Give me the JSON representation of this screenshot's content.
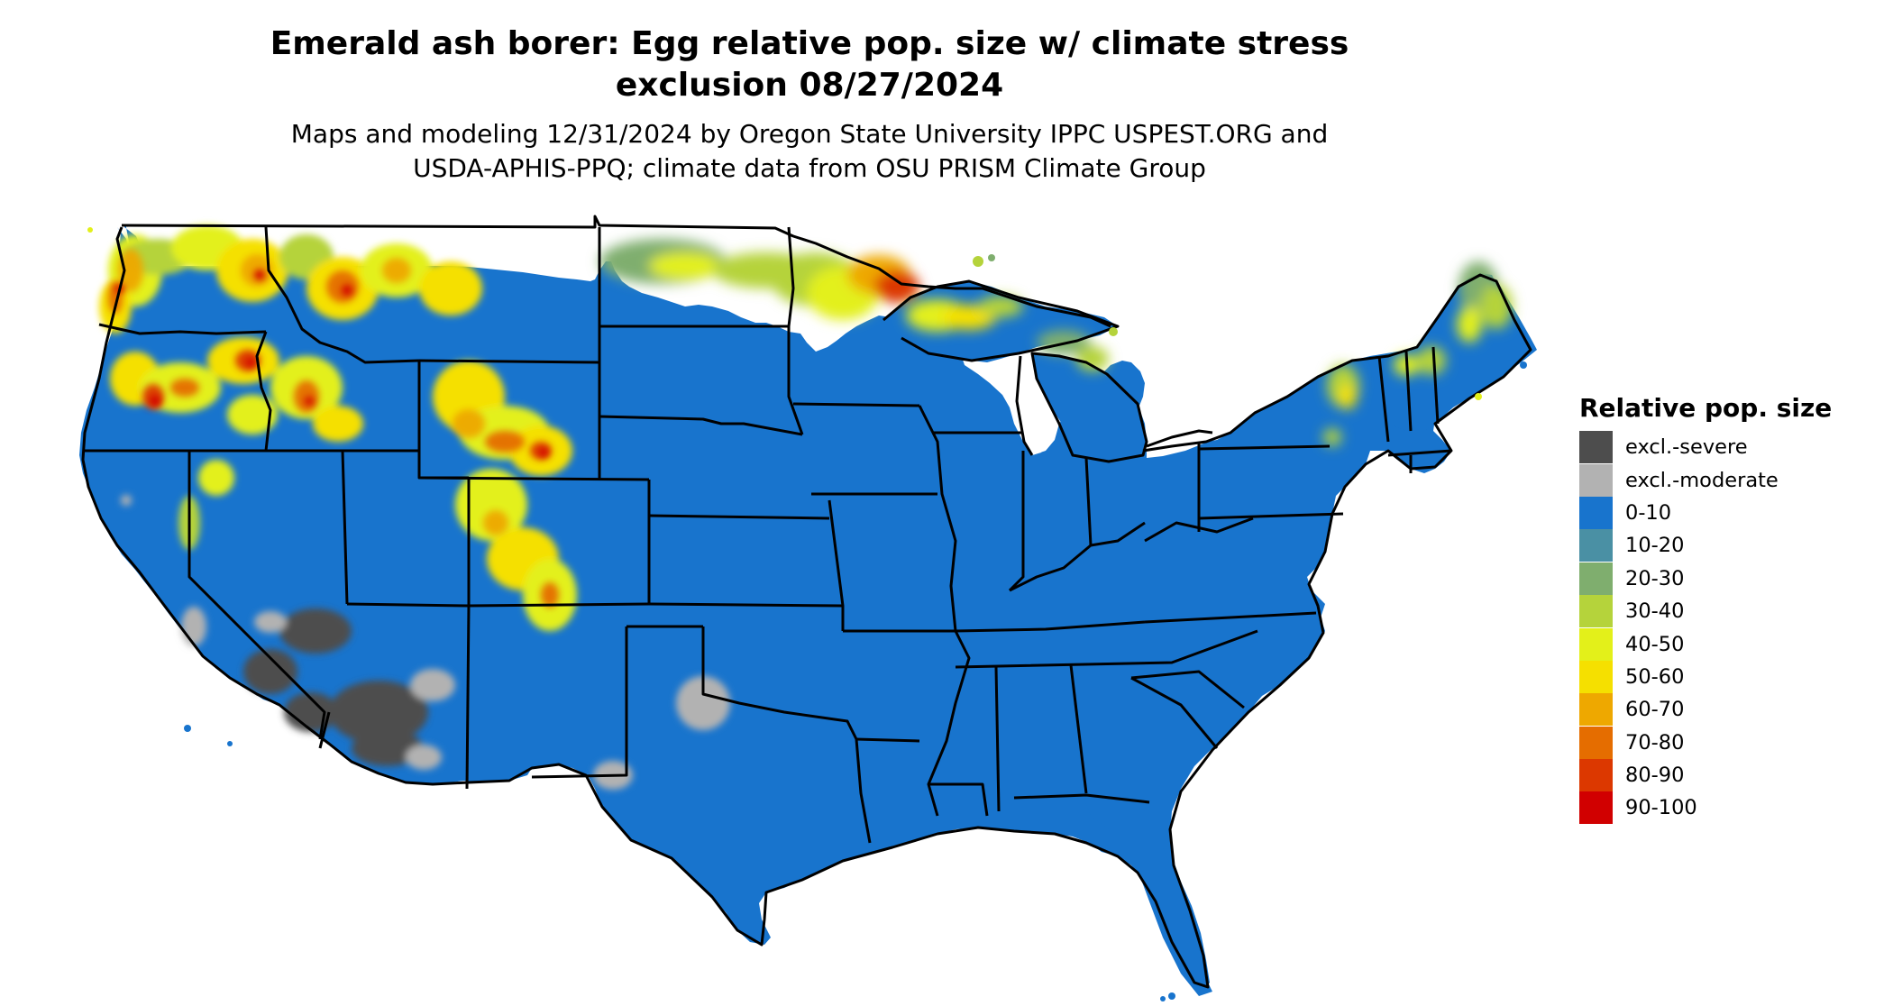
{
  "title": {
    "line1": "Emerald ash borer: Egg relative pop. size w/ climate stress",
    "line2": "exclusion 08/27/2024"
  },
  "subtitle": {
    "line1": "Maps and modeling 12/31/2024 by Oregon State University IPPC USPEST.ORG and",
    "line2": "USDA-APHIS-PPQ; climate data from OSU PRISM Climate Group"
  },
  "legend": {
    "title": "Relative pop. size",
    "items": [
      {
        "label": "excl.-severe",
        "color": "#4d4d4d"
      },
      {
        "label": "excl.-moderate",
        "color": "#b2b2b2"
      },
      {
        "label": "0-10",
        "color": "#1874cd"
      },
      {
        "label": "10-20",
        "color": "#4a90a4"
      },
      {
        "label": "20-30",
        "color": "#7fae6e"
      },
      {
        "label": "30-40",
        "color": "#b5d33b"
      },
      {
        "label": "40-50",
        "color": "#e3f01a"
      },
      {
        "label": "50-60",
        "color": "#f5e000"
      },
      {
        "label": "60-70",
        "color": "#eea800"
      },
      {
        "label": "70-80",
        "color": "#e56d00"
      },
      {
        "label": "80-90",
        "color": "#dc3800"
      },
      {
        "label": "90-100",
        "color": "#d10000"
      }
    ]
  },
  "map": {
    "region": "Conterminous United States",
    "base_color": "#1874cd",
    "boundary_color": "#000000"
  }
}
